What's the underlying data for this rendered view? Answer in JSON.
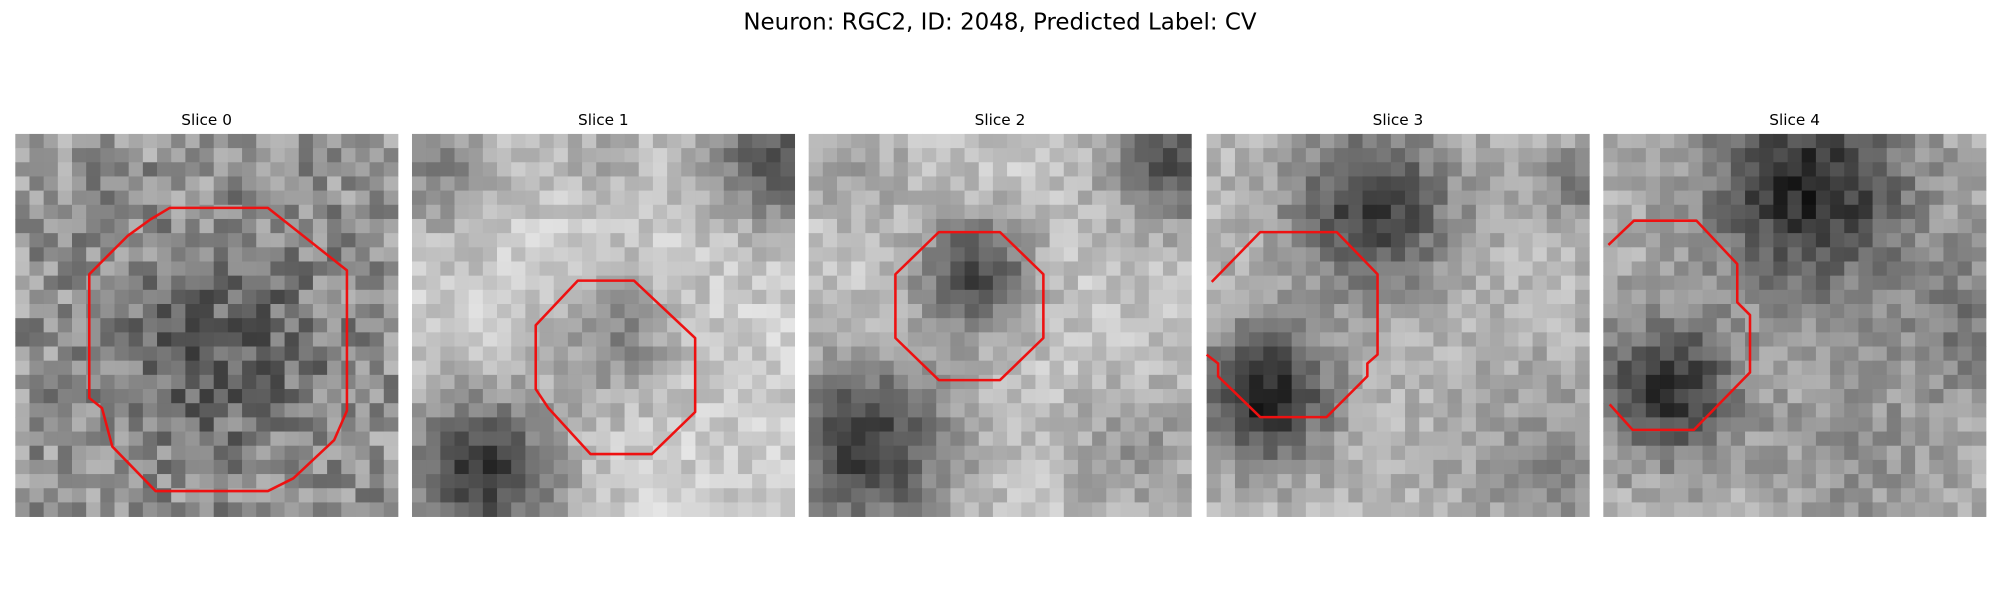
{
  "title": "Neuron: RGC2, ID: 2048, Predicted Label: CV",
  "panels": [
    {
      "title": "Slice 0"
    },
    {
      "title": "Slice 1"
    },
    {
      "title": "Slice 2"
    },
    {
      "title": "Slice 3"
    },
    {
      "title": "Slice 4"
    }
  ]
}
